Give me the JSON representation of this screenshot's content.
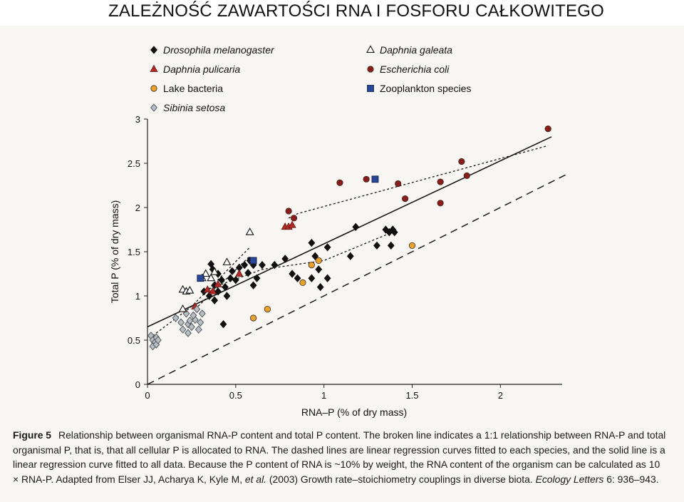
{
  "slide_title": "ZALEŻNOŚĆ ZAWARTOŚCI RNA I FOSFORU CAŁKOWITEGO",
  "chart_data": {
    "type": "scatter",
    "title": "",
    "xlabel": "RNA–P (% of dry mass)",
    "ylabel": "Total P (% of dry mass)",
    "xlim": [
      0,
      2.35
    ],
    "ylim": [
      0,
      3
    ],
    "x_ticks": [
      0,
      0.5,
      1,
      1.5,
      2
    ],
    "x_tick_labels": [
      "0",
      "0.5",
      "1",
      "1.5",
      "2"
    ],
    "y_ticks": [
      0,
      0.5,
      1,
      1.5,
      2,
      2.5,
      3
    ],
    "y_tick_labels": [
      "0",
      "0.5",
      "1",
      "1.5",
      "2",
      "2.5",
      "3"
    ],
    "grid": false,
    "legend_position": "top",
    "series": [
      {
        "name": "Drosophila melanogaster",
        "marker": "diamond",
        "color": "#111111",
        "points": [
          [
            0.36,
            1.36
          ],
          [
            0.37,
            1.3
          ],
          [
            0.4,
            1.25
          ],
          [
            0.42,
            1.18
          ],
          [
            0.43,
            0.68
          ],
          [
            0.47,
            1.2
          ],
          [
            0.48,
            1.28
          ],
          [
            0.5,
            1.18
          ],
          [
            0.52,
            1.32
          ],
          [
            0.55,
            1.35
          ],
          [
            0.57,
            1.26
          ],
          [
            0.58,
            1.4
          ],
          [
            0.6,
            1.12
          ],
          [
            0.6,
            1.35
          ],
          [
            0.62,
            1.2
          ],
          [
            0.65,
            1.35
          ],
          [
            0.72,
            1.35
          ],
          [
            0.78,
            1.42
          ],
          [
            0.82,
            1.25
          ],
          [
            0.85,
            1.2
          ],
          [
            0.93,
            1.6
          ],
          [
            0.93,
            1.2
          ],
          [
            0.95,
            1.45
          ],
          [
            0.97,
            1.3
          ],
          [
            0.98,
            1.1
          ],
          [
            1.02,
            1.2
          ],
          [
            1.02,
            1.55
          ],
          [
            1.15,
            1.45
          ],
          [
            1.18,
            1.78
          ],
          [
            1.3,
            1.57
          ],
          [
            1.35,
            1.75
          ],
          [
            1.37,
            1.72
          ],
          [
            1.38,
            1.57
          ],
          [
            1.39,
            1.75
          ],
          [
            1.4,
            1.72
          ],
          [
            0.38,
            1.12
          ],
          [
            0.4,
            1.05
          ],
          [
            0.45,
            1.0
          ],
          [
            0.35,
            1.0
          ],
          [
            0.38,
            0.95
          ],
          [
            0.32,
            1.05
          ],
          [
            0.44,
            1.1
          ]
        ]
      },
      {
        "name": "Daphnia pulicaria",
        "marker": "triangle",
        "color": "#b22a25",
        "points": [
          [
            0.27,
            0.88
          ],
          [
            0.34,
            1.07
          ],
          [
            0.37,
            1.05
          ],
          [
            0.4,
            1.13
          ],
          [
            0.52,
            1.25
          ],
          [
            0.78,
            1.78
          ],
          [
            0.8,
            1.78
          ],
          [
            0.82,
            1.8
          ]
        ]
      },
      {
        "name": "Lake bacteria",
        "marker": "circle",
        "color": "#e8a22d",
        "points": [
          [
            0.6,
            0.75
          ],
          [
            0.68,
            0.85
          ],
          [
            0.88,
            1.15
          ],
          [
            0.93,
            1.35
          ],
          [
            0.97,
            1.4
          ],
          [
            1.5,
            1.57
          ]
        ]
      },
      {
        "name": "Sibinia setosa",
        "marker": "diamond",
        "color": "#b8bec2",
        "points": [
          [
            0.02,
            0.55
          ],
          [
            0.03,
            0.5
          ],
          [
            0.04,
            0.47
          ],
          [
            0.05,
            0.53
          ],
          [
            0.03,
            0.43
          ],
          [
            0.05,
            0.45
          ],
          [
            0.06,
            0.5
          ],
          [
            0.16,
            0.75
          ],
          [
            0.19,
            0.7
          ],
          [
            0.2,
            0.62
          ],
          [
            0.22,
            0.8
          ],
          [
            0.23,
            0.68
          ],
          [
            0.24,
            0.72
          ],
          [
            0.25,
            0.65
          ],
          [
            0.23,
            0.58
          ],
          [
            0.27,
            0.73
          ],
          [
            0.28,
            0.85
          ],
          [
            0.3,
            0.7
          ],
          [
            0.31,
            0.8
          ],
          [
            0.26,
            0.78
          ],
          [
            0.29,
            0.62
          ]
        ]
      },
      {
        "name": "Daphnia galeata",
        "marker": "triangle-open",
        "color": "#ffffff",
        "points": [
          [
            0.2,
            0.85
          ],
          [
            0.2,
            1.07
          ],
          [
            0.22,
            1.05
          ],
          [
            0.24,
            1.06
          ],
          [
            0.31,
            1.2
          ],
          [
            0.33,
            1.25
          ],
          [
            0.36,
            1.2
          ],
          [
            0.38,
            1.27
          ],
          [
            0.45,
            1.38
          ],
          [
            0.58,
            1.72
          ]
        ]
      },
      {
        "name": "Escherichia coli",
        "marker": "circle",
        "color": "#8a1c1c",
        "points": [
          [
            0.8,
            1.96
          ],
          [
            0.83,
            1.88
          ],
          [
            1.09,
            2.28
          ],
          [
            1.24,
            2.32
          ],
          [
            1.42,
            2.27
          ],
          [
            1.46,
            2.1
          ],
          [
            1.66,
            2.29
          ],
          [
            1.66,
            2.05
          ],
          [
            1.78,
            2.52
          ],
          [
            1.81,
            2.36
          ],
          [
            2.27,
            2.89
          ]
        ]
      },
      {
        "name": "Zooplankton species",
        "marker": "square",
        "color": "#28479a",
        "points": [
          [
            0.3,
            1.2
          ],
          [
            0.6,
            1.4
          ],
          [
            1.29,
            2.32
          ]
        ]
      }
    ],
    "lines": [
      {
        "id": "overall-regression",
        "style": "solid",
        "x": [
          0,
          2.29
        ],
        "y": [
          0.65,
          2.8
        ]
      },
      {
        "id": "one-to-one",
        "style": "dashed",
        "x": [
          0,
          2.37
        ],
        "y": [
          0,
          2.37
        ]
      },
      {
        "id": "regression-sibinia-galeata",
        "style": "dotted",
        "x": [
          0.03,
          0.25,
          0.58
        ],
        "y": [
          0.55,
          0.88,
          1.55
        ]
      },
      {
        "id": "regression-pulicaria",
        "style": "dotted",
        "x": [
          0.27,
          0.58
        ],
        "y": [
          0.85,
          1.45
        ]
      },
      {
        "id": "regression-drosophila",
        "style": "dotted",
        "x": [
          0.35,
          0.65,
          1.0,
          1.4
        ],
        "y": [
          1.08,
          1.3,
          1.4,
          1.73
        ]
      },
      {
        "id": "regression-ecoli",
        "style": "dotted",
        "x": [
          0.8,
          0.85,
          2.27
        ],
        "y": [
          1.88,
          1.93,
          2.7
        ]
      }
    ]
  },
  "caption": {
    "figure_label": "Figure 5",
    "text_before_journal": "Relationship between organismal RNA-P content and total P content. The broken line indicates a 1:1 relationship between RNA-P and total organismal P, that is, that all cellular P is allocated to RNA. The dashed lines are linear regression curves fitted to each species, and the solid line is a linear regression curve fitted to all data. Because the P content of RNA is ~10% by weight, the RNA content of the organism can be calculated as 10 × RNA-P. Adapted from Elser JJ, Acharya K, Kyle M, ",
    "et_al": "et al.",
    "text_middle": " (2003) Growth rate–stoichiometry couplings in diverse biota. ",
    "journal": "Ecology Letters",
    "text_after_journal": " 6: 936–943."
  }
}
